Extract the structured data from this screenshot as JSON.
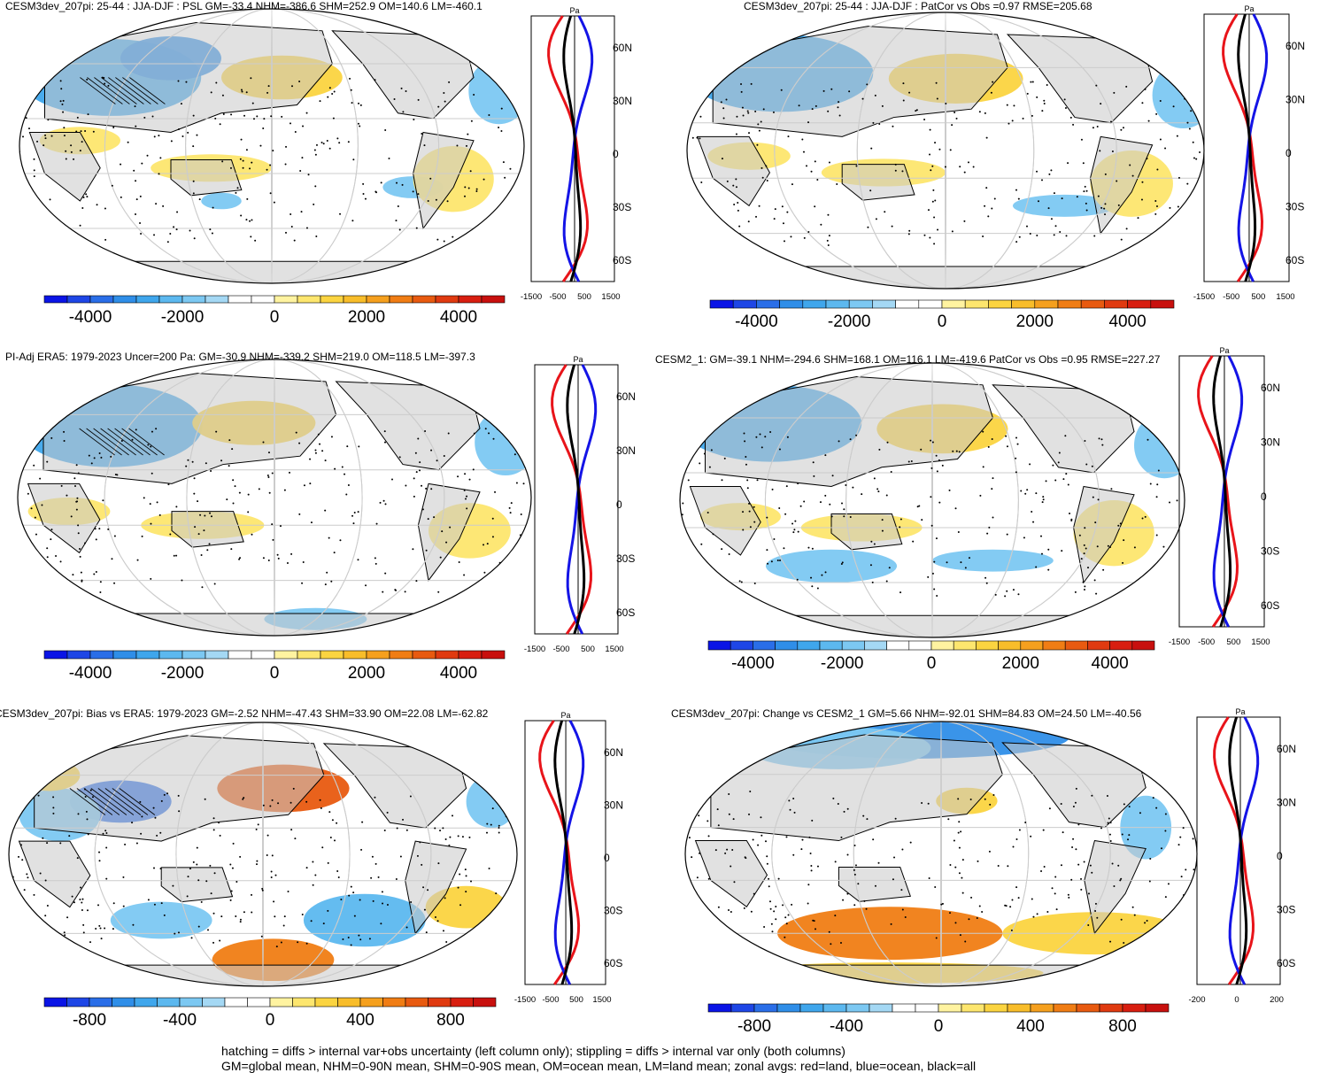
{
  "chart_data": [
    {
      "type": "heatmap",
      "variable": "PSL",
      "units": "Pa",
      "title": "CESM3dev_207pi: 25-44 : JJA-DJF : PSL GM=-33.4 NHM=-386.6 SHM=252.9 OM=140.6 LM=-460.1",
      "colorbar_ticks": [
        "-4000",
        "-2000",
        "0",
        "2000",
        "4000"
      ],
      "zonal_avg_xticks": [
        "-1500",
        "-500",
        "500",
        "1500"
      ],
      "zonal_avg_lat_labels": [
        "60N",
        "30N",
        "0",
        "30S",
        "60S"
      ]
    },
    {
      "type": "heatmap",
      "variable": "PSL",
      "units": "Pa",
      "title": "CESM3dev_207pi: 25-44 : JJA-DJF : PatCor vs Obs =0.97 RMSE=205.68",
      "colorbar_ticks": [
        "-4000",
        "-2000",
        "0",
        "2000",
        "4000"
      ],
      "zonal_avg_xticks": [
        "-1500",
        "-500",
        "500",
        "1500"
      ],
      "zonal_avg_lat_labels": [
        "60N",
        "30N",
        "0",
        "30S",
        "60S"
      ]
    },
    {
      "type": "heatmap",
      "variable": "PSL",
      "units": "Pa",
      "title": "PI-Adj ERA5: 1979-2023 Uncer=200 Pa: GM=-30.9 NHM=-339.2 SHM=219.0 OM=118.5 LM=-397.3",
      "colorbar_ticks": [
        "-4000",
        "-2000",
        "0",
        "2000",
        "4000"
      ],
      "zonal_avg_xticks": [
        "-1500",
        "-500",
        "500",
        "1500"
      ],
      "zonal_avg_lat_labels": [
        "60N",
        "30N",
        "0",
        "30S",
        "60S"
      ]
    },
    {
      "type": "heatmap",
      "variable": "PSL",
      "units": "Pa",
      "title": "CESM2_1: GM=-39.1 NHM=-294.6 SHM=168.1 OM=116.1 LM=-419.6 PatCor vs Obs =0.95 RMSE=227.27",
      "colorbar_ticks": [
        "-4000",
        "-2000",
        "0",
        "2000",
        "4000"
      ],
      "zonal_avg_xticks": [
        "-1500",
        "-500",
        "500",
        "1500"
      ],
      "zonal_avg_lat_labels": [
        "60N",
        "30N",
        "0",
        "30S",
        "60S"
      ]
    },
    {
      "type": "heatmap",
      "variable": "PSL",
      "units": "Pa",
      "title": "CESM3dev_207pi: Bias vs ERA5: 1979-2023 GM=-2.52 NHM=-47.43 SHM=33.90 OM=22.08 LM=-62.82",
      "colorbar_ticks": [
        "-800",
        "-400",
        "0",
        "400",
        "800"
      ],
      "zonal_avg_xticks": [
        "-1500",
        "-500",
        "500",
        "1500"
      ],
      "zonal_avg_lat_labels": [
        "60N",
        "30N",
        "0",
        "30S",
        "60S"
      ]
    },
    {
      "type": "heatmap",
      "variable": "PSL",
      "units": "Pa",
      "title": "CESM3dev_207pi: Change vs CESM2_1 GM=5.66 NHM=-92.01 SHM=84.83 OM=24.50 LM=-40.56",
      "colorbar_ticks": [
        "-800",
        "-400",
        "0",
        "400",
        "800"
      ],
      "zonal_avg_xticks": [
        "-200",
        "0",
        "200"
      ],
      "zonal_avg_lat_labels": [
        "60N",
        "30N",
        "0",
        "30S",
        "60S"
      ]
    }
  ],
  "footer": {
    "line1": "hatching = diffs > internal var+obs uncertainty (left column only); stippling = diffs > internal var only (both columns)",
    "line2": "GM=global mean, NHM=0-90N mean, SHM=0-90S mean, OM=ocean mean, LM=land mean; zonal avgs: red=land, blue=ocean, black=all"
  },
  "colors": {
    "land": "#c8c8c8",
    "line_land": "#e8141a",
    "line_ocean": "#1414e6",
    "line_all": "#000000",
    "scale_full": [
      "#0a14e6",
      "#1e46e6",
      "#2a6ee8",
      "#2f8ee8",
      "#3fa6ec",
      "#5cb8ef",
      "#7cc8f2",
      "#a4d8f4",
      "#ffffff",
      "#ffffff",
      "#fff3a0",
      "#fde66e",
      "#fbd440",
      "#f8bd2a",
      "#f5a01e",
      "#f07d14",
      "#e85a10",
      "#e03a10",
      "#d81e10",
      "#c8100e"
    ]
  }
}
